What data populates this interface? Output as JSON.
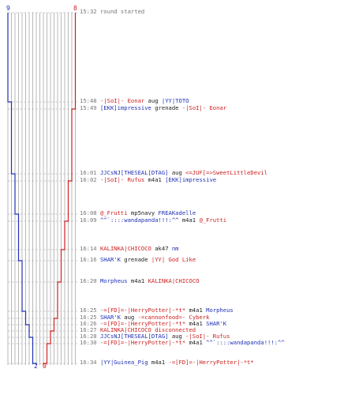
{
  "score": {
    "blue_top": "9",
    "red_top": "8",
    "blue_bottom": "2",
    "red_bottom": "0",
    "blue_color": "#1f31b4",
    "red_color": "#cc1f1f",
    "blue_steps": [
      9,
      8,
      7,
      6,
      5,
      4,
      3,
      2
    ],
    "red_steps": [
      8,
      7,
      6,
      5,
      4,
      3,
      2,
      1,
      0
    ]
  },
  "events": [
    {
      "time": "15:32",
      "parts": [
        {
          "t": "round started",
          "c": "gray"
        }
      ]
    },
    {
      "time": "15:48",
      "parts": [
        {
          "t": "-|SoI|- Eonar",
          "c": "red"
        },
        {
          "t": " aug ",
          "c": "plain"
        },
        {
          "t": "|YY|TOTO",
          "c": "blue"
        }
      ]
    },
    {
      "time": "15:49",
      "parts": [
        {
          "t": "[EKK]impressive",
          "c": "blue"
        },
        {
          "t": " grenade ",
          "c": "plain"
        },
        {
          "t": "-|SoI|- Eonar",
          "c": "red"
        }
      ]
    },
    {
      "time": "16:01",
      "parts": [
        {
          "t": "JJCsNJ[THESEAL[DTAG]",
          "c": "blue"
        },
        {
          "t": " aug ",
          "c": "plain"
        },
        {
          "t": "<=JUF[=>SweetLittleDevil",
          "c": "red"
        }
      ]
    },
    {
      "time": "16:02",
      "parts": [
        {
          "t": "-|SoI|- Rufus",
          "c": "red"
        },
        {
          "t": " m4a1 ",
          "c": "plain"
        },
        {
          "t": "[EKK]impressive",
          "c": "blue"
        }
      ]
    },
    {
      "time": "16:08",
      "parts": [
        {
          "t": "@_Frutti",
          "c": "red"
        },
        {
          "t": " mp5navy ",
          "c": "plain"
        },
        {
          "t": "FREAKadelle",
          "c": "blue"
        }
      ]
    },
    {
      "time": "16:09",
      "parts": [
        {
          "t": "^^`::::wandapanda!!!:^^",
          "c": "blue"
        },
        {
          "t": " m4a1 ",
          "c": "plain"
        },
        {
          "t": "@_Frutti",
          "c": "red"
        }
      ]
    },
    {
      "time": "16:14",
      "parts": [
        {
          "t": "KALINKA|CHICOCO",
          "c": "red"
        },
        {
          "t": " ak47 ",
          "c": "plain"
        },
        {
          "t": "nm",
          "c": "blue"
        }
      ]
    },
    {
      "time": "16:16",
      "parts": [
        {
          "t": "SHAR'K",
          "c": "blue"
        },
        {
          "t": " grenade ",
          "c": "plain"
        },
        {
          "t": "|YY| God Like",
          "c": "red"
        }
      ]
    },
    {
      "time": "16:20",
      "parts": [
        {
          "t": "Morpheus",
          "c": "blue"
        },
        {
          "t": " m4a1 ",
          "c": "plain"
        },
        {
          "t": "KALINKA|CHICOCO",
          "c": "red"
        }
      ]
    },
    {
      "time": "16:25",
      "parts": [
        {
          "t": "-=[FD]=-|HerryPotter|-*t*",
          "c": "red"
        },
        {
          "t": " m4a1 ",
          "c": "plain"
        },
        {
          "t": "Morpheus",
          "c": "blue"
        }
      ]
    },
    {
      "time": "16:25",
      "parts": [
        {
          "t": "SHAR'K",
          "c": "blue"
        },
        {
          "t": " aug ",
          "c": "plain"
        },
        {
          "t": "-=cannonfood=- Cyberk",
          "c": "red"
        }
      ]
    },
    {
      "time": "16:26",
      "parts": [
        {
          "t": "-=[FD]=-|HerryPotter|-*t*",
          "c": "red"
        },
        {
          "t": " m4a1 ",
          "c": "plain"
        },
        {
          "t": "SHAR'K",
          "c": "blue"
        }
      ]
    },
    {
      "time": "16:27",
      "parts": [
        {
          "t": "KALINKA|CHICOCO disconnected",
          "c": "red"
        }
      ]
    },
    {
      "time": "16:28",
      "parts": [
        {
          "t": "JJCsNJ[THESEAL[DTAG]",
          "c": "blue"
        },
        {
          "t": " aug ",
          "c": "plain"
        },
        {
          "t": "-|SoI|- Rufus",
          "c": "red"
        }
      ]
    },
    {
      "time": "16:30",
      "parts": [
        {
          "t": "-=[FD]=-|HerryPotter|-*t*",
          "c": "red"
        },
        {
          "t": " m4a1 ",
          "c": "plain"
        },
        {
          "t": "^^`::::wandapanda!!!:^^",
          "c": "blue"
        }
      ]
    },
    {
      "time": "16:34",
      "parts": [
        {
          "t": "|YY|Guinea_Pig",
          "c": "blue"
        },
        {
          "t": " m4a1 ",
          "c": "plain"
        },
        {
          "t": "-=[FD]=-|HerryPotter|-*t*",
          "c": "red"
        }
      ]
    }
  ]
}
